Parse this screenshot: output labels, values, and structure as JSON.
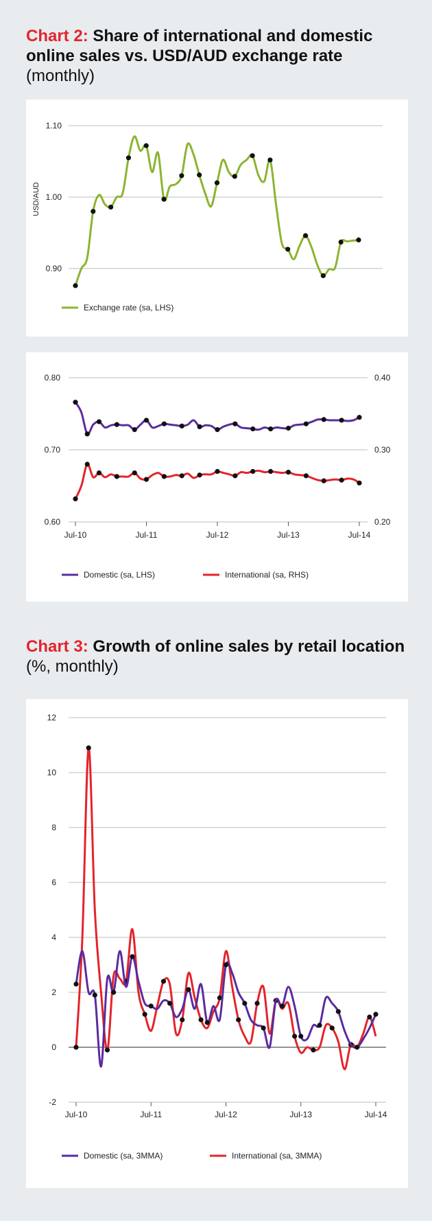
{
  "chart2": {
    "title_num": "Chart 2:",
    "title_main": "Share of international and domestic online sales vs. USD/AUD exchange rate",
    "title_sub": "(monthly)"
  },
  "chart3": {
    "title_num": "Chart 3:",
    "title_main": "Growth of online sales by retail location",
    "title_sub": "(%, monthly)"
  },
  "colors": {
    "green": "#8cb431",
    "purple": "#5b2b9e",
    "red": "#e3242b",
    "grid": "#bdbdbd",
    "dot": "#111111"
  },
  "chart_data": [
    {
      "type": "line",
      "ylabel": "USD/AUD",
      "ylim": [
        0.87,
        1.12
      ],
      "yticks": [
        "0.90",
        "1.00",
        "1.10"
      ],
      "ytick_values": [
        0.9,
        1.0,
        1.1
      ],
      "legend": [
        "Exchange rate (sa, LHS)"
      ],
      "legend_position": "bottom-left",
      "series": [
        {
          "name": "Exchange rate (sa, LHS)",
          "color": "#8cb431",
          "x": [
            0,
            1,
            2,
            3,
            4,
            5,
            6,
            7,
            8,
            9,
            10,
            11,
            12,
            13,
            14,
            15,
            16,
            17,
            18,
            19,
            20,
            21,
            22,
            23,
            24,
            25,
            26,
            27,
            28,
            29,
            30,
            31,
            32,
            33,
            34,
            35,
            36,
            37,
            38,
            39,
            40,
            41,
            42,
            43,
            44,
            45,
            46,
            47,
            48
          ],
          "values": [
            0.876,
            0.9,
            0.915,
            0.98,
            1.003,
            0.99,
            0.986,
            1.0,
            1.005,
            1.055,
            1.085,
            1.065,
            1.072,
            1.035,
            1.062,
            0.997,
            1.015,
            1.018,
            1.03,
            1.074,
            1.06,
            1.031,
            1.005,
            0.987,
            1.02,
            1.052,
            1.035,
            1.029,
            1.045,
            1.052,
            1.058,
            1.031,
            1.022,
            1.052,
            0.99,
            0.935,
            0.927,
            0.913,
            0.932,
            0.946,
            0.93,
            0.905,
            0.89,
            0.899,
            0.901,
            0.937,
            0.938,
            0.939,
            0.94
          ]
        }
      ],
      "markers": [
        0,
        3,
        6,
        9,
        12,
        15,
        18,
        21,
        24,
        27,
        30,
        33,
        36,
        39,
        42,
        45,
        48
      ]
    },
    {
      "type": "line",
      "ylim_left": [
        0.6,
        0.8
      ],
      "ylim_right": [
        0.2,
        0.4
      ],
      "yticks_left": [
        "0.60",
        "0.70",
        "0.80"
      ],
      "yticks_right": [
        "0.20",
        "0.30",
        "0.40"
      ],
      "ytick_values": [
        0.6,
        0.7,
        0.8
      ],
      "categories": [
        "Jul-10",
        "Jul-11",
        "Jul-12",
        "Jul-13",
        "Jul-14"
      ],
      "category_x": [
        0,
        12,
        24,
        36,
        48
      ],
      "legend": [
        "Domestic (sa, LHS)",
        "International (sa, RHS)"
      ],
      "legend_position": "bottom",
      "series": [
        {
          "name": "Domestic (sa, LHS)",
          "color": "#5b2b9e",
          "axis": "left",
          "x": [
            0,
            1,
            2,
            3,
            4,
            5,
            6,
            7,
            8,
            9,
            10,
            11,
            12,
            13,
            14,
            15,
            16,
            17,
            18,
            19,
            20,
            21,
            22,
            23,
            24,
            25,
            26,
            27,
            28,
            29,
            30,
            31,
            32,
            33,
            34,
            35,
            36,
            37,
            38,
            39,
            40,
            41,
            42,
            43,
            44,
            45,
            46,
            47,
            48
          ],
          "values": [
            0.766,
            0.752,
            0.722,
            0.735,
            0.739,
            0.731,
            0.734,
            0.735,
            0.734,
            0.734,
            0.728,
            0.735,
            0.741,
            0.731,
            0.733,
            0.736,
            0.735,
            0.734,
            0.733,
            0.735,
            0.741,
            0.732,
            0.734,
            0.733,
            0.728,
            0.732,
            0.735,
            0.736,
            0.731,
            0.73,
            0.729,
            0.728,
            0.731,
            0.729,
            0.731,
            0.73,
            0.73,
            0.734,
            0.735,
            0.736,
            0.739,
            0.742,
            0.742,
            0.741,
            0.741,
            0.741,
            0.74,
            0.741,
            0.745
          ]
        },
        {
          "name": "International (sa, RHS)",
          "color": "#e3242b",
          "axis": "right",
          "x": [
            0,
            1,
            2,
            3,
            4,
            5,
            6,
            7,
            8,
            9,
            10,
            11,
            12,
            13,
            14,
            15,
            16,
            17,
            18,
            19,
            20,
            21,
            22,
            23,
            24,
            25,
            26,
            27,
            28,
            29,
            30,
            31,
            32,
            33,
            34,
            35,
            36,
            37,
            38,
            39,
            40,
            41,
            42,
            43,
            44,
            45,
            46,
            47,
            48
          ],
          "values": [
            0.232,
            0.25,
            0.28,
            0.262,
            0.268,
            0.262,
            0.266,
            0.263,
            0.263,
            0.263,
            0.268,
            0.26,
            0.259,
            0.265,
            0.268,
            0.263,
            0.263,
            0.265,
            0.264,
            0.267,
            0.261,
            0.265,
            0.266,
            0.266,
            0.27,
            0.268,
            0.266,
            0.264,
            0.269,
            0.268,
            0.27,
            0.271,
            0.269,
            0.27,
            0.269,
            0.268,
            0.269,
            0.266,
            0.265,
            0.264,
            0.261,
            0.258,
            0.257,
            0.258,
            0.259,
            0.258,
            0.26,
            0.259,
            0.254
          ]
        }
      ],
      "markers": [
        0,
        2,
        4,
        7,
        10,
        12,
        15,
        18,
        21,
        24,
        27,
        30,
        33,
        36,
        39,
        42,
        45,
        48
      ]
    },
    {
      "type": "line",
      "ylim": [
        -2,
        12
      ],
      "yticks": [
        "-2",
        "0",
        "2",
        "4",
        "6",
        "8",
        "10",
        "12"
      ],
      "ytick_values": [
        -2,
        0,
        2,
        4,
        6,
        8,
        10,
        12
      ],
      "categories": [
        "Jul-10",
        "Jul-11",
        "Jul-12",
        "Jul-13",
        "Jul-14"
      ],
      "category_x": [
        0,
        12,
        24,
        36,
        48
      ],
      "legend": [
        "Domestic (sa, 3MMA)",
        "International (sa, 3MMA)"
      ],
      "legend_position": "bottom",
      "series": [
        {
          "name": "Domestic (sa, 3MMA)",
          "color": "#5b2b9e",
          "x": [
            0,
            1,
            2,
            3,
            4,
            5,
            6,
            7,
            8,
            9,
            10,
            11,
            12,
            13,
            14,
            15,
            16,
            17,
            18,
            19,
            20,
            21,
            22,
            23,
            24,
            25,
            26,
            27,
            28,
            29,
            30,
            31,
            32,
            33,
            34,
            35,
            36,
            37,
            38,
            39,
            40,
            41,
            42,
            43,
            44,
            45,
            46,
            47,
            48
          ],
          "values": [
            2.3,
            3.5,
            2.0,
            1.9,
            -0.7,
            2.5,
            2.0,
            3.5,
            2.2,
            3.3,
            2.4,
            1.6,
            1.5,
            1.4,
            1.7,
            1.6,
            1.1,
            1.4,
            2.1,
            1.4,
            2.3,
            0.9,
            1.5,
            1.0,
            3.0,
            2.7,
            2.0,
            1.6,
            1.0,
            0.8,
            0.7,
            0.0,
            1.7,
            1.5,
            2.2,
            1.5,
            0.4,
            0.3,
            0.8,
            0.8,
            1.8,
            1.6,
            1.3,
            0.6,
            0.1,
            0.0,
            0.3,
            0.7,
            1.2
          ]
        },
        {
          "name": "International (sa, 3MMA)",
          "color": "#e3242b",
          "x": [
            0,
            1,
            2,
            3,
            4,
            5,
            6,
            7,
            8,
            9,
            10,
            11,
            12,
            13,
            14,
            15,
            16,
            17,
            18,
            19,
            20,
            21,
            22,
            23,
            24,
            25,
            26,
            27,
            28,
            29,
            30,
            31,
            32,
            33,
            34,
            35,
            36,
            37,
            38,
            39,
            40,
            41,
            42,
            43,
            44,
            45,
            46,
            47,
            48
          ],
          "values": [
            0.0,
            4.0,
            10.9,
            5.0,
            2.0,
            -0.1,
            2.6,
            2.5,
            2.4,
            4.3,
            2.0,
            1.2,
            0.6,
            1.5,
            2.4,
            2.3,
            0.5,
            1.0,
            2.7,
            1.8,
            1.0,
            0.7,
            1.3,
            1.8,
            3.5,
            2.2,
            1.0,
            0.4,
            0.2,
            1.6,
            2.2,
            0.5,
            1.7,
            1.4,
            1.6,
            0.4,
            -0.2,
            0.0,
            -0.1,
            0.0,
            0.8,
            0.7,
            0.2,
            -0.8,
            0.1,
            0.0,
            0.5,
            1.1,
            0.4
          ]
        }
      ],
      "markers_domestic": [
        0,
        3,
        6,
        9,
        12,
        15,
        18,
        21,
        24,
        27,
        30,
        33,
        36,
        39,
        42,
        45,
        48
      ],
      "markers_international": [
        0,
        2,
        5,
        8,
        11,
        14,
        17,
        20,
        23,
        26,
        29,
        32,
        35,
        38,
        41,
        44,
        47
      ]
    }
  ]
}
